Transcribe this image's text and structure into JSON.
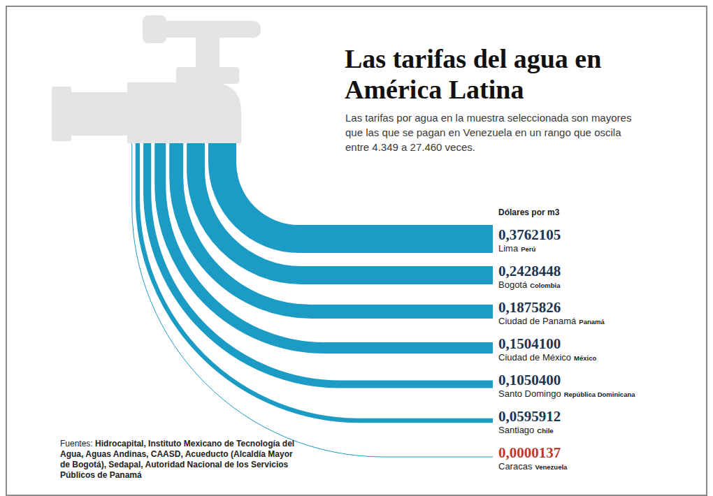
{
  "chart_data": {
    "type": "bar",
    "orientation": "horizontal",
    "title": "Las tarifas del agua en América Latina",
    "subtitle": "Las tarifas por agua en la muestra seleccionada son mayores que las que se pagan en Venezuela en un rango que oscila entre 4.349 a 27.460 veces.",
    "value_axis_label": "Dólares por m3",
    "categories": [
      "Lima",
      "Bogotá",
      "Ciudad de Panamá",
      "Ciudad de México",
      "Santo Domingo",
      "Santiago",
      "Caracas"
    ],
    "countries": [
      "Perú",
      "Colombia",
      "Panamá",
      "México",
      "República Dominicana",
      "Chile",
      "Venezuela"
    ],
    "values": [
      0.3762105,
      0.2428448,
      0.1875826,
      0.15041,
      0.10504,
      0.0595912,
      1.37e-05
    ],
    "value_labels": [
      "0,3762105",
      "0,2428448",
      "0,1875826",
      "0,1504100",
      "0,1050400",
      "0,0595912",
      "0,0000137"
    ],
    "color": "#1c9cc4",
    "data_labels": true,
    "tick_labels": false,
    "grid": false,
    "source_label": "Fuentes:",
    "source": "Hidrocapital, Instituto Mexicano de Tecnología del Agua, Aguas Andinas, CAASD, Acueducto (Alcaldía Mayor de Bogotá), Sedapal, Autoridad Nacional de los Servicios Públicos de Panamá"
  }
}
